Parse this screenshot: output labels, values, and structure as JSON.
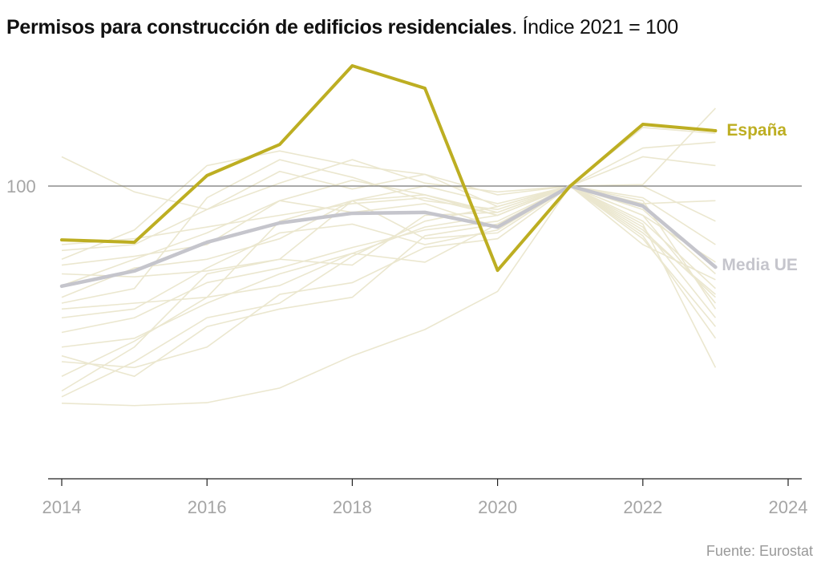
{
  "title": {
    "bold": "Permisos para construcción de edificios residenciales",
    "rest": ". Índice 2021 = 100"
  },
  "source": "Fuente: Eurostat",
  "colors": {
    "spain": "#bdae22",
    "eu_mean": "#c5c5cc",
    "countries": "#ebe7cf",
    "reference_line": "#777777"
  },
  "chart_data": {
    "type": "line",
    "x": [
      2014,
      2015,
      2016,
      2017,
      2018,
      2019,
      2020,
      2021,
      2022,
      2023
    ],
    "xticks": [
      "2014",
      "2016",
      "2018",
      "2020",
      "2022",
      "2024"
    ],
    "xlim": [
      2014,
      2024
    ],
    "ylim": [
      0,
      150
    ],
    "yticks": [
      "100"
    ],
    "reference_line": 100,
    "grid": false,
    "series": [
      {
        "name": "España",
        "highlight": true,
        "values": [
          81.6,
          80.8,
          103.6,
          114.2,
          141.1,
          133.4,
          71.2,
          100,
          121.1,
          118.9
        ]
      },
      {
        "name": "Media UE",
        "highlight": true,
        "values": [
          65.8,
          71,
          80.8,
          87.4,
          90.7,
          91,
          86,
          100,
          93.2,
          72.3
        ]
      }
    ],
    "background_series": [
      [
        25.8,
        25,
        26,
        31,
        42,
        51,
        64,
        100,
        100.5,
        126.6
      ],
      [
        110,
        98,
        92,
        105,
        99,
        104,
        93,
        100,
        110,
        107
      ],
      [
        75,
        85,
        107,
        112,
        107,
        104,
        97,
        100,
        120,
        118
      ],
      [
        60,
        65,
        96,
        109,
        103,
        95,
        92,
        100,
        113,
        115
      ],
      [
        78,
        80,
        92,
        101,
        109,
        101,
        98,
        100,
        100,
        88
      ],
      [
        73,
        76,
        80,
        95,
        102,
        97,
        91,
        100,
        85,
        62
      ],
      [
        70,
        69,
        71,
        75,
        95,
        97,
        90,
        100,
        90,
        60
      ],
      [
        55,
        58,
        72,
        84,
        87,
        80,
        85,
        100,
        88,
        65
      ],
      [
        45,
        48,
        60,
        70,
        77,
        86,
        90,
        100,
        86,
        55
      ],
      [
        42,
        35,
        52,
        58,
        62,
        83,
        87,
        100,
        82,
        52
      ],
      [
        28,
        40,
        55,
        60,
        76,
        88,
        93,
        100,
        83,
        48
      ],
      [
        30,
        45,
        70,
        75,
        73,
        90,
        91,
        100,
        87,
        38
      ],
      [
        50,
        55,
        67,
        72,
        79,
        85,
        88,
        100,
        84,
        63
      ],
      [
        62,
        72,
        75,
        82,
        95,
        100,
        94,
        100,
        92,
        70
      ],
      [
        40,
        38,
        45,
        63,
        67,
        79,
        82,
        100,
        80,
        68
      ],
      [
        58,
        60,
        62,
        66,
        77,
        74,
        87,
        100,
        90,
        74
      ],
      [
        66,
        75,
        84,
        95,
        91,
        94,
        86,
        100,
        94,
        95
      ],
      [
        80,
        82,
        86,
        90,
        94,
        96,
        90,
        100,
        96,
        80
      ],
      [
        35,
        47,
        62,
        88,
        95,
        82,
        84,
        100,
        95,
        58
      ]
    ]
  }
}
